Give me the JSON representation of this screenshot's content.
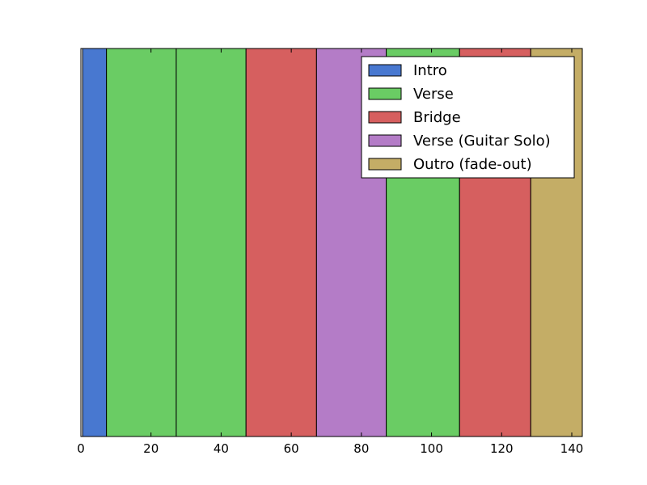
{
  "chart_data": {
    "type": "bar",
    "orientation": "horizontal-segments",
    "title": "",
    "xlabel": "",
    "ylabel": "",
    "xlim": [
      0,
      143
    ],
    "ylim": [
      0,
      1
    ],
    "xticks": [
      0,
      20,
      40,
      60,
      80,
      100,
      120,
      140
    ],
    "xtick_labels": [
      "0",
      "20",
      "40",
      "60",
      "80",
      "100",
      "120",
      "140"
    ],
    "show_yticks": false,
    "grid": false,
    "legend_position": "top-right",
    "legend": [
      {
        "label": "Intro",
        "color": "#4878d0"
      },
      {
        "label": "Verse",
        "color": "#6acc64"
      },
      {
        "label": "Bridge",
        "color": "#d65f5f"
      },
      {
        "label": "Verse (Guitar Solo)",
        "color": "#b47cc7"
      },
      {
        "label": "Outro (fade-out)",
        "color": "#c4ad66"
      }
    ],
    "segments": [
      {
        "section": "Intro",
        "start": 0.5,
        "end": 7.3,
        "color": "#4878d0"
      },
      {
        "section": "Verse",
        "start": 7.3,
        "end": 27.2,
        "color": "#6acc64"
      },
      {
        "section": "Verse",
        "start": 27.2,
        "end": 47.1,
        "color": "#6acc64"
      },
      {
        "section": "Bridge",
        "start": 47.1,
        "end": 67.2,
        "color": "#d65f5f"
      },
      {
        "section": "Verse (Guitar Solo)",
        "start": 67.2,
        "end": 87.1,
        "color": "#b47cc7"
      },
      {
        "section": "Verse",
        "start": 87.1,
        "end": 108.0,
        "color": "#6acc64"
      },
      {
        "section": "Bridge",
        "start": 108.0,
        "end": 128.3,
        "color": "#d65f5f"
      },
      {
        "section": "Outro (fade-out)",
        "start": 128.3,
        "end": 143.0,
        "color": "#c4ad66"
      }
    ]
  }
}
